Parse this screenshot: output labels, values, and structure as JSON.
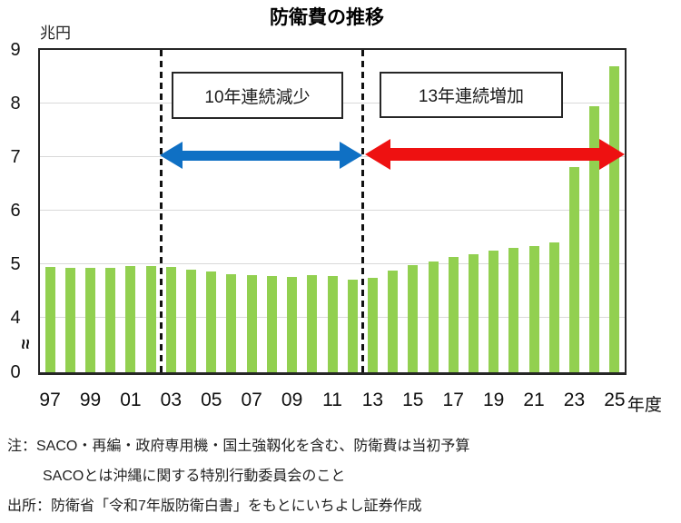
{
  "title": "防衛費の推移",
  "unit_label": "兆円",
  "annotations": {
    "decrease": "10年連続減少",
    "increase": "13年連続増加"
  },
  "notes": {
    "line1": "注：SACO・再編・政府専用機・国土強靱化を含む、防衛費は当初予算",
    "line2": "SACOとは沖縄に関する特別行動委員会のこと",
    "source": "出所：防衛省「令和7年版防衛白書」をもとにいちよし証券作成"
  },
  "icons": {
    "axis_break_glyph": "≈"
  },
  "colors": {
    "bar": "#92D050",
    "decrease_arrow": "#0F70C4",
    "increase_arrow": "#EE1111",
    "gridline": "#D9D9D9"
  },
  "chart_data": {
    "type": "bar",
    "title": "防衛費の推移",
    "ylabel": "兆円",
    "xlabel_suffix": "年度",
    "categories": [
      "97",
      "98",
      "99",
      "00",
      "01",
      "02",
      "03",
      "04",
      "05",
      "06",
      "07",
      "08",
      "09",
      "10",
      "11",
      "12",
      "13",
      "14",
      "15",
      "16",
      "17",
      "18",
      "19",
      "20",
      "21",
      "22",
      "23",
      "24",
      "25"
    ],
    "values": [
      4.95,
      4.94,
      4.93,
      4.94,
      4.96,
      4.96,
      4.95,
      4.9,
      4.86,
      4.81,
      4.8,
      4.78,
      4.77,
      4.79,
      4.78,
      4.71,
      4.75,
      4.88,
      4.98,
      5.05,
      5.13,
      5.19,
      5.26,
      5.31,
      5.34,
      5.4,
      6.82,
      7.95,
      8.7
    ],
    "y_ticks": [
      9,
      8,
      7,
      6,
      5,
      4,
      0
    ],
    "gridlines": [
      4,
      5,
      6,
      7,
      8
    ],
    "axis_break_between": [
      0,
      4
    ],
    "x_tick_labels": [
      "97",
      "99",
      "01",
      "03",
      "05",
      "07",
      "09",
      "11",
      "13",
      "15",
      "17",
      "19",
      "21",
      "23",
      "25"
    ],
    "dashed_separators_after": [
      "02",
      "12"
    ],
    "regions": [
      {
        "label": "10年連続減少",
        "from": "03",
        "to": "12",
        "arrow_color": "#0F70C4"
      },
      {
        "label": "13年連続増加",
        "from": "13",
        "to": "25",
        "arrow_color": "#EE1111"
      }
    ],
    "legend": false,
    "grid": true
  }
}
